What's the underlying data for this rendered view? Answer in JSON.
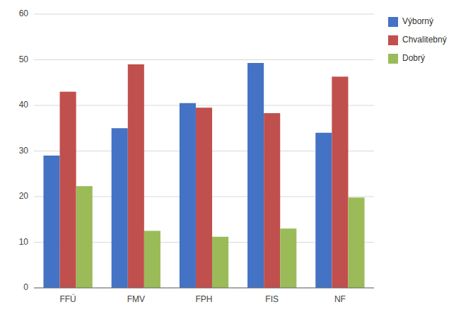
{
  "chart_data": {
    "type": "bar",
    "categories": [
      "FFÚ",
      "FMV",
      "FPH",
      "FIS",
      "NF"
    ],
    "series": [
      {
        "name": "Výborný",
        "color": "#4472C4",
        "values": [
          29,
          35,
          40.5,
          49.3,
          34
        ]
      },
      {
        "name": "Chvalitebný",
        "color": "#C0504D",
        "values": [
          43,
          49,
          39.5,
          38.3,
          46.3
        ]
      },
      {
        "name": "Dobrý",
        "color": "#9BBB59",
        "values": [
          22.3,
          12.5,
          11.2,
          13,
          19.8
        ]
      }
    ],
    "ylim": [
      0,
      60
    ],
    "yticks": [
      0,
      10,
      20,
      30,
      40,
      50,
      60
    ],
    "grid": true,
    "legend": "upper right"
  }
}
